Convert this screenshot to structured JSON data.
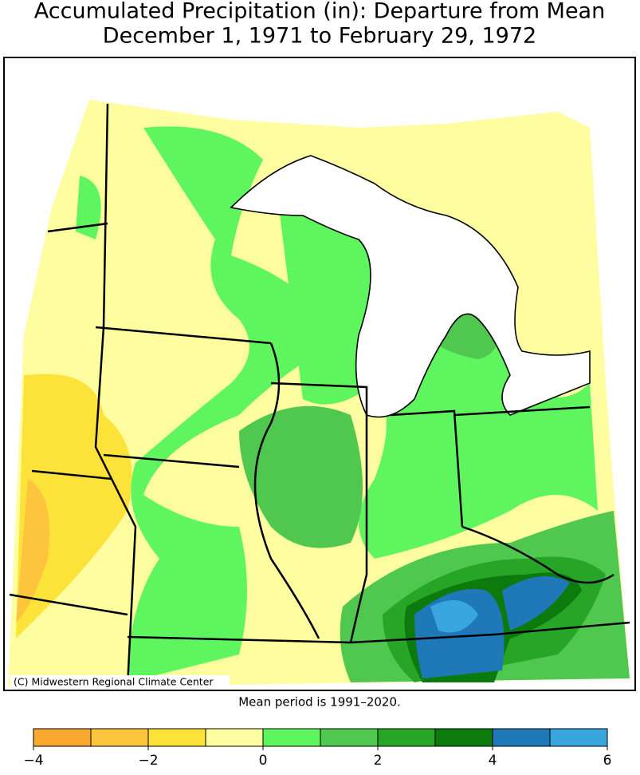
{
  "header": {
    "title": "Accumulated Precipitation (in): Departure from Mean",
    "subtitle": "December 1, 1971 to February 29, 1972"
  },
  "map": {
    "credit": "(C) Midwestern Regional Climate Center",
    "note": "Mean period is 1991–2020."
  },
  "legend": {
    "bins": [
      -4,
      -3,
      -2,
      -1,
      0,
      1,
      2,
      3,
      4,
      5,
      6
    ],
    "colors": [
      "#f9a92f",
      "#fcc53d",
      "#fde23a",
      "#fefea0",
      "#5ff55f",
      "#50c850",
      "#27a527",
      "#0c7a0c",
      "#1f78b8",
      "#3aa6e0"
    ],
    "ticks": [
      {
        "value": -4,
        "label": "−4"
      },
      {
        "value": -2,
        "label": "−2"
      },
      0,
      2,
      4,
      6
    ]
  }
}
